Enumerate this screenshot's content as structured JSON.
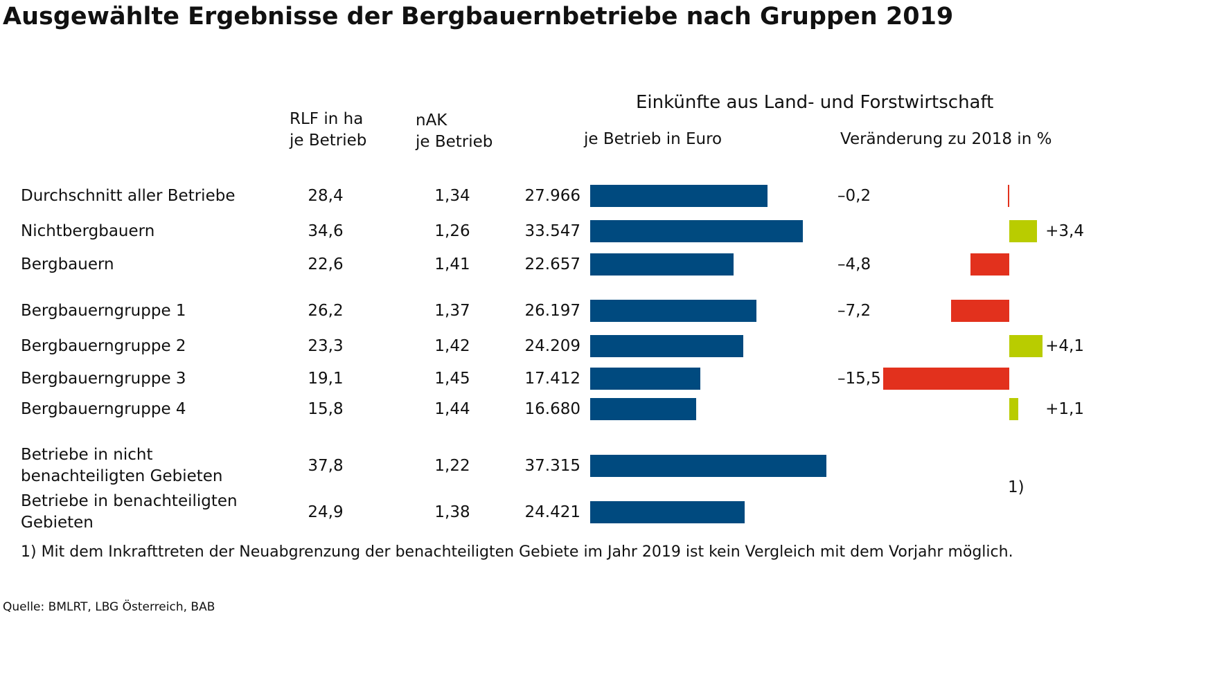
{
  "chart_data": {
    "type": "bar",
    "title": "Ausgewählte Ergebnisse der Bergbauernbetriebe nach Gruppen 2019",
    "group_title": "Einkünfte aus Land- und Forstwirtschaft",
    "categories": [
      "Durchschnitt aller Betriebe",
      "Nichtbergbauern",
      "Bergbauern",
      "Bergbauerngruppe 1",
      "Bergbauerngruppe 2",
      "Bergbauerngruppe 3",
      "Bergbauerngruppe 4",
      "Betriebe in nicht\nbenachteiligten Gebieten",
      "Betriebe in benachteiligten\nGebieten"
    ],
    "series": [
      {
        "name": "RLF in ha\nje Betrieb",
        "values": [
          28.4,
          34.6,
          22.6,
          26.2,
          23.3,
          19.1,
          15.8,
          37.8,
          24.9
        ],
        "value_labels": [
          "28,4",
          "34,6",
          "22,6",
          "26,2",
          "23,3",
          "19,1",
          "15,8",
          "37,8",
          "24,9"
        ]
      },
      {
        "name": "nAK\nje Betrieb",
        "values": [
          1.34,
          1.26,
          1.41,
          1.37,
          1.42,
          1.45,
          1.44,
          1.22,
          1.38
        ],
        "value_labels": [
          "1,34",
          "1,26",
          "1,41",
          "1,37",
          "1,42",
          "1,45",
          "1,44",
          "1,22",
          "1,38"
        ]
      },
      {
        "name": "je Betrieb in Euro",
        "color": "#004a7f",
        "xlim": [
          0,
          35000
        ],
        "values": [
          27966,
          33547,
          22657,
          26197,
          24209,
          17412,
          16680,
          37315,
          24421
        ],
        "value_labels": [
          "27.966",
          "33.547",
          "22.657",
          "26.197",
          "24.209",
          "17.412",
          "16.680",
          "37.315",
          "24.421"
        ]
      },
      {
        "name": "Veränderung zu 2018 in %",
        "color_negative": "#e2311d",
        "color_positive": "#b9cc00",
        "xlim": [
          -16,
          5
        ],
        "values": [
          -0.2,
          3.4,
          -4.8,
          -7.2,
          4.1,
          -15.5,
          1.1,
          null,
          null
        ],
        "value_labels": [
          "–0,2",
          "+3,4",
          "–4,8",
          "–7,2",
          "+4,1",
          "–15,5",
          "+1,1",
          null,
          null
        ]
      }
    ],
    "footnote_marker": "1)",
    "footnote": "1) Mit dem Inkrafttreten der Neuabgrenzung der benachteiligten Gebiete im Jahr 2019 ist kein Vergleich mit dem Vorjahr möglich.",
    "source": "Quelle: BMLRT, LBG Österreich, BAB"
  }
}
